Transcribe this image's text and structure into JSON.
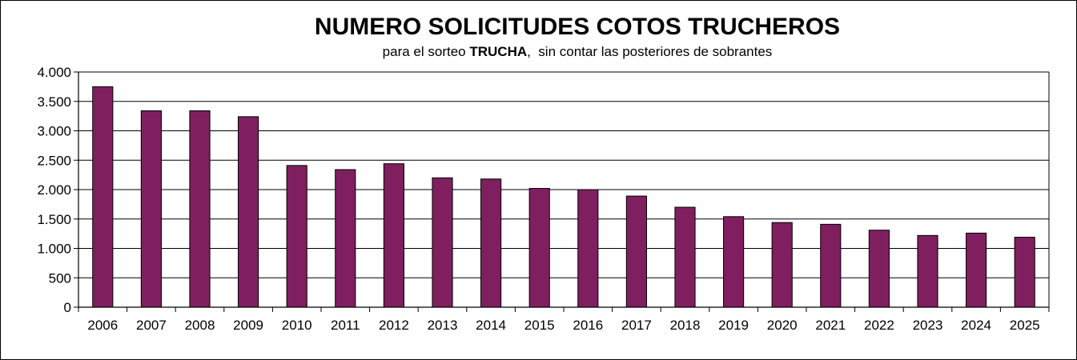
{
  "chart_data": {
    "type": "bar",
    "title": "NUMERO SOLICITUDES COTOS TRUCHEROS",
    "subtitle": {
      "prefix": "para el sorteo ",
      "emphasis": "TRUCHA",
      "suffix": ",  sin contar las posteriores de sobrantes"
    },
    "xlabel": "",
    "ylabel": "",
    "ylim": [
      0,
      4000
    ],
    "yticks": [
      {
        "value": 0,
        "label": "0"
      },
      {
        "value": 500,
        "label": "500"
      },
      {
        "value": 1000,
        "label": "1.000"
      },
      {
        "value": 1500,
        "label": "1.500"
      },
      {
        "value": 2000,
        "label": "2.000"
      },
      {
        "value": 2500,
        "label": "2.500"
      },
      {
        "value": 3000,
        "label": "3.000"
      },
      {
        "value": 3500,
        "label": "3.500"
      },
      {
        "value": 4000,
        "label": "4.000"
      }
    ],
    "grid": true,
    "legend": "none",
    "bar_color": "#7F1F5F",
    "categories": [
      "2006",
      "2007",
      "2008",
      "2009",
      "2010",
      "2011",
      "2012",
      "2013",
      "2014",
      "2015",
      "2016",
      "2017",
      "2018",
      "2019",
      "2020",
      "2021",
      "2022",
      "2023",
      "2024",
      "2025"
    ],
    "values": [
      3750,
      3340,
      3340,
      3240,
      2410,
      2340,
      2440,
      2200,
      2180,
      2020,
      2000,
      1890,
      1700,
      1540,
      1440,
      1410,
      1310,
      1220,
      1260,
      1190
    ]
  }
}
